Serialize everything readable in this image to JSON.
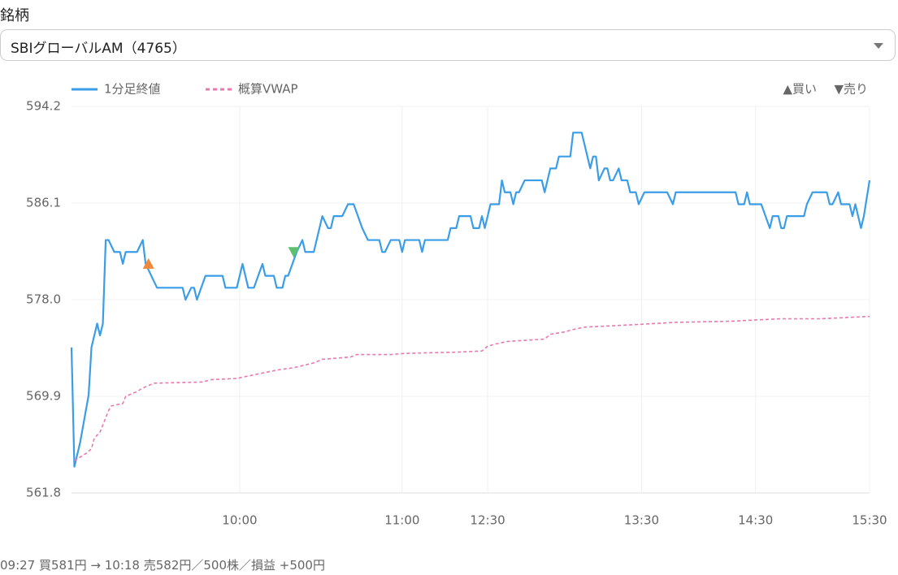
{
  "form": {
    "label": "銘柄",
    "select_value": "SBIグローバルAM（4765）"
  },
  "chart_data": {
    "type": "line",
    "series": [
      {
        "name": "1分足終値",
        "color": "#3b9de8",
        "style": "solid",
        "x": [
          0,
          1,
          3,
          6,
          7,
          9,
          10,
          11,
          12,
          13,
          15,
          17,
          18,
          19,
          23,
          25,
          26,
          30,
          39,
          40,
          42,
          43,
          44,
          47,
          53,
          54,
          58,
          60,
          62,
          64,
          67,
          68,
          71,
          72,
          74,
          75,
          76,
          79,
          81,
          82,
          85,
          88,
          90,
          91,
          92,
          95,
          97,
          99,
          102,
          104,
          108,
          109,
          110,
          112,
          115,
          116,
          117,
          122,
          123,
          124,
          132,
          133,
          135,
          136,
          140,
          141,
          143,
          144,
          145,
          147,
          150,
          151,
          152,
          154,
          155,
          156,
          157,
          159,
          165,
          166,
          168,
          170,
          171,
          175,
          176,
          179,
          180,
          182,
          183,
          184,
          185,
          187,
          188,
          189,
          190,
          192,
          193,
          195,
          196,
          198,
          199,
          201,
          209,
          211,
          212,
          233,
          234,
          236,
          237,
          238,
          242,
          245,
          246,
          248,
          249,
          250,
          251,
          257,
          258,
          260,
          265,
          266,
          267,
          269,
          270,
          273,
          274,
          275,
          277,
          278,
          280
        ],
        "values": [
          574,
          564,
          566,
          570,
          574,
          576,
          575,
          576,
          583,
          583,
          582,
          582,
          581,
          582,
          582,
          583,
          581,
          579,
          579,
          578,
          579,
          579,
          578,
          580,
          580,
          579,
          579,
          581,
          579,
          579,
          581,
          580,
          580,
          579,
          579,
          580,
          580,
          582,
          583,
          582,
          582,
          585,
          584,
          584,
          585,
          585,
          586,
          586,
          584,
          583,
          583,
          582,
          582,
          583,
          583,
          582,
          583,
          583,
          582,
          583,
          583,
          584,
          584,
          585,
          585,
          584,
          584,
          585,
          584,
          586,
          586,
          588,
          587,
          587,
          586,
          587,
          587,
          588,
          588,
          587,
          589,
          589,
          590,
          590,
          592,
          592,
          591,
          589,
          590,
          590,
          588,
          589,
          589,
          588,
          588,
          589,
          588,
          588,
          587,
          587,
          586,
          587,
          587,
          586,
          587,
          587,
          586,
          586,
          587,
          586,
          586,
          584,
          585,
          585,
          584,
          584,
          585,
          585,
          586,
          587,
          587,
          586,
          586,
          587,
          586,
          586,
          585,
          586,
          584,
          585,
          588
        ]
      },
      {
        "name": "概算VWAP",
        "color": "#e879b0",
        "style": "dashed",
        "x": [
          1,
          5,
          7,
          8,
          10,
          13,
          14,
          18,
          19,
          23,
          25,
          29,
          46,
          49,
          58,
          60,
          66,
          72,
          78,
          85,
          88,
          98,
          100,
          112,
          117,
          135,
          144,
          146,
          149,
          153,
          166,
          168,
          173,
          176,
          180,
          197,
          212,
          232,
          240,
          249,
          263,
          280
        ],
        "values": [
          564.5,
          565.1,
          565.5,
          566.4,
          566.9,
          568.7,
          569.1,
          569.3,
          569.9,
          570.3,
          570.6,
          571.0,
          571.1,
          571.3,
          571.4,
          571.5,
          571.8,
          572.1,
          572.3,
          572.7,
          573.0,
          573.2,
          573.4,
          573.4,
          573.5,
          573.6,
          573.7,
          574.1,
          574.3,
          574.5,
          574.7,
          575.1,
          575.3,
          575.5,
          575.7,
          575.9,
          576.1,
          576.2,
          576.3,
          576.4,
          576.4,
          576.6
        ]
      }
    ],
    "markers": [
      {
        "x": 27,
        "value": 581,
        "color": "#f0883e",
        "shape": "up"
      },
      {
        "x": 78,
        "value": 582,
        "color": "#5cc06e",
        "shape": "down"
      }
    ],
    "marker_legend": [
      "▲買い",
      "▼売り"
    ],
    "xlim": [
      0,
      280
    ],
    "xticks": [
      {
        "value": 59,
        "label": "10:00"
      },
      {
        "value": 116,
        "label": "11:00"
      },
      {
        "value": 146,
        "label": "12:30"
      },
      {
        "value": 200,
        "label": "13:30"
      },
      {
        "value": 240,
        "label": "14:30"
      },
      {
        "value": 280,
        "label": "15:30"
      }
    ],
    "ylim": [
      561.8,
      594.2
    ],
    "yticks": [
      561.8,
      569.9,
      {
        "value": 578,
        "label": "578.0"
      },
      586.1,
      594.2
    ],
    "grid": true
  },
  "footer": {
    "summary": "09:27 買581円 → 10:18 売582円／500株／損益 +500円"
  }
}
